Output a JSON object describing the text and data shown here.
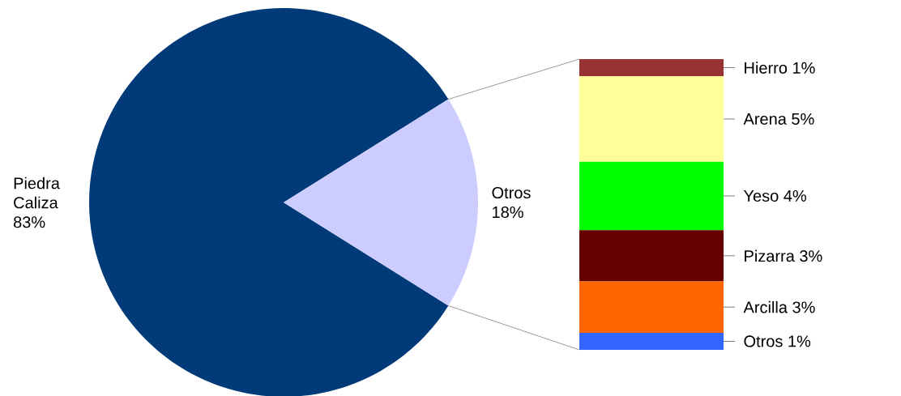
{
  "chart_data": [
    {
      "type": "pie",
      "categories": [
        "Piedra Caliza",
        "Otros"
      ],
      "values": [
        83,
        18
      ],
      "value_labels": [
        "83%",
        "18%"
      ],
      "colors": [
        "#003a78",
        "#ccccff"
      ]
    },
    {
      "type": "bar",
      "stacked": true,
      "categories": [
        null
      ],
      "series": [
        {
          "color": "#3366ff",
          "values": [
            1
          ],
          "value_labels": [
            "Otros 1%"
          ]
        },
        {
          "color": "#ff6600",
          "values": [
            3
          ],
          "value_labels": [
            "Arcilla 3%"
          ]
        },
        {
          "color": "#660000",
          "values": [
            3
          ],
          "value_labels": [
            "Pizarra 3%"
          ]
        },
        {
          "color": "#00ff00",
          "values": [
            4
          ],
          "value_labels": [
            "Yeso 4%"
          ]
        },
        {
          "color": "#ffff99",
          "values": [
            5
          ],
          "value_labels": [
            "Arena 5%"
          ]
        },
        {
          "color": "#993333",
          "values": [
            1
          ],
          "value_labels": [
            "Hierro 1%"
          ]
        }
      ]
    }
  ]
}
